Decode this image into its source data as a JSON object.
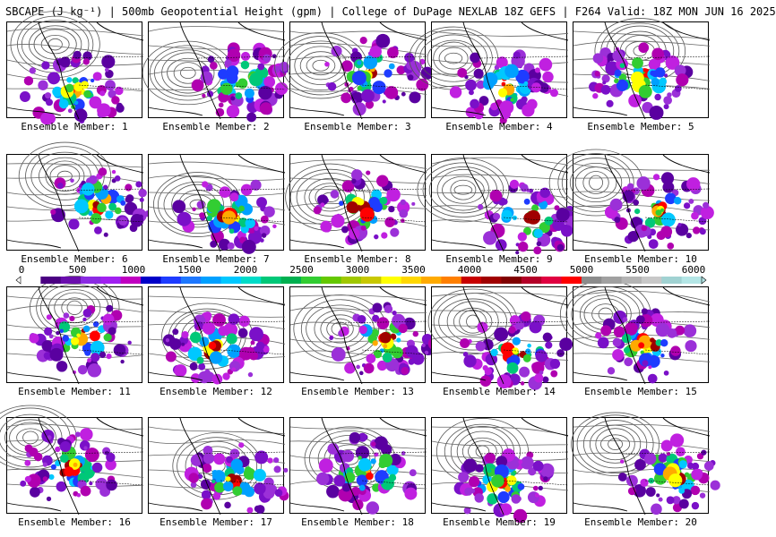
{
  "title": "SBCAPE (J kg⁻¹) | 500mb Geopotential Height (gpm) | College of DuPage NEXLAB 18Z GEFS | F264 Valid: 18Z MON JUN 16 2025",
  "colorbar": {
    "ticks": [
      "0",
      "500",
      "1000",
      "1500",
      "2000",
      "2500",
      "3000",
      "3500",
      "4000",
      "4500",
      "5000",
      "5500",
      "6000"
    ],
    "colors": [
      "#ffffff",
      "#4b0082",
      "#6a0dad",
      "#8a2be2",
      "#a020f0",
      "#c000c0",
      "#0000c8",
      "#1e3cff",
      "#1e78ff",
      "#00a0ff",
      "#00c8ff",
      "#00dcc8",
      "#00c878",
      "#00b050",
      "#32cd32",
      "#64c800",
      "#a0c800",
      "#c8c800",
      "#ffff00",
      "#ffd700",
      "#ffaa00",
      "#ff7f00",
      "#c80000",
      "#a00000",
      "#800000",
      "#b40028",
      "#e00040",
      "#ff0000",
      "#8c8c8c",
      "#a0a0a0",
      "#b4b4b4",
      "#c8c8c8",
      "#a0d2d2",
      "#b4e6e6"
    ]
  },
  "members": [
    {
      "label": "Ensemble Member: 1"
    },
    {
      "label": "Ensemble Member: 2"
    },
    {
      "label": "Ensemble Member: 3"
    },
    {
      "label": "Ensemble Member: 4"
    },
    {
      "label": "Ensemble Member: 5"
    },
    {
      "label": "Ensemble Member: 6"
    },
    {
      "label": "Ensemble Member: 7"
    },
    {
      "label": "Ensemble Member: 8"
    },
    {
      "label": "Ensemble Member: 9"
    },
    {
      "label": "Ensemble Member: 10"
    },
    {
      "label": "Ensemble Member: 11"
    },
    {
      "label": "Ensemble Member: 12"
    },
    {
      "label": "Ensemble Member: 13"
    },
    {
      "label": "Ensemble Member: 14"
    },
    {
      "label": "Ensemble Member: 15"
    },
    {
      "label": "Ensemble Member: 16"
    },
    {
      "label": "Ensemble Member: 17"
    },
    {
      "label": "Ensemble Member: 18"
    },
    {
      "label": "Ensemble Member: 19"
    },
    {
      "label": "Ensemble Member: 20"
    }
  ]
}
